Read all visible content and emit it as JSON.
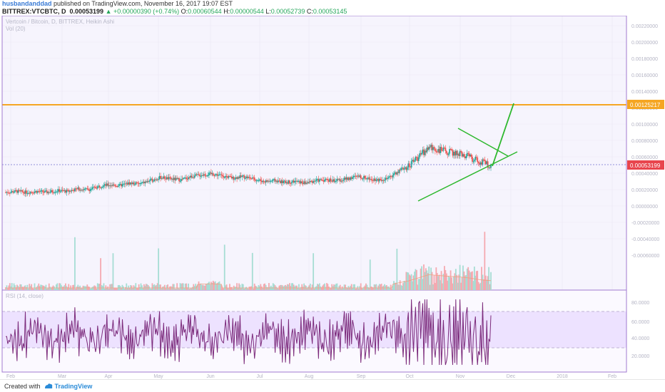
{
  "header": {
    "username": "husbandanddad",
    "published": "published on TradingView.com, November 16, 2017 19:07 EST",
    "symbol": "BITTREX:VTCBTC, D",
    "last_price": "0.00053199",
    "change": "▲ +0.00000390 (+0.74%)",
    "o_label": "O:",
    "o_value": "0.00060544",
    "h_label": "H:",
    "h_value": "0.00000544",
    "l_label": "L:",
    "l_value": "0.00052739",
    "c_label": "C:",
    "c_value": "0.00053145"
  },
  "chart": {
    "legend_1": "Vertcoin / Bitcoin, D, BITTREX, Heikin Ashi",
    "legend_2": "Vol (20)",
    "rsi_legend": "RSI (14, close)",
    "price_axis": [
      "0.00220000",
      "0.00200000",
      "0.00180000",
      "0.00160000",
      "0.00140000",
      "0.00120000",
      "0.00100000",
      "0.00080000",
      "0.00060000",
      "0.00040000",
      "0.00020000",
      "0.00000000",
      "-0.00020000",
      "-0.00040000",
      "-0.00060000"
    ],
    "rsi_axis": [
      "80.0000",
      "60.0000",
      "40.0000",
      "20.0000"
    ],
    "resistance_label": "0.00125217",
    "last_label": "0.00053199",
    "time_axis": [
      "Feb",
      "Mar",
      "Apr",
      "May",
      "Jun",
      "Jul",
      "Aug",
      "Sep",
      "Oct",
      "Nov",
      "Dec",
      "2018",
      "Feb"
    ],
    "colors": {
      "up": "#26a69a",
      "down": "#ef5350",
      "resistance": "#f5a623",
      "trend": "#2db82d",
      "rsi": "#7b2a7b",
      "rsi_band": "#eadcff",
      "panel_border": "#a07ad0"
    }
  },
  "chart_data": {
    "type": "candlestick",
    "title": "Vertcoin / Bitcoin, D, BITTREX, Heikin Ashi",
    "price_levels": {
      "resistance": 0.00125217,
      "last": 0.00053199
    },
    "close": [
      0.0002,
      0.00021,
      0.0002,
      0.00021,
      0.0002,
      0.00022,
      0.00021,
      0.00024,
      0.00023,
      0.00027,
      0.00029,
      0.00028,
      0.00031,
      0.0003,
      0.00034,
      0.00038,
      0.00036,
      0.00035,
      0.00039,
      0.00041,
      0.00042,
      0.0004,
      0.00037,
      0.00039,
      0.00036,
      0.00033,
      0.00034,
      0.00032,
      0.00033,
      0.00031,
      0.00034,
      0.00035,
      0.00034,
      0.00036,
      0.00039,
      0.00037,
      0.00035,
      0.00036,
      0.00045,
      0.00052,
      0.00063,
      0.00074,
      0.00071,
      0.00068,
      0.00066,
      0.00062,
      0.00056,
      0.00053
    ]
  }
}
